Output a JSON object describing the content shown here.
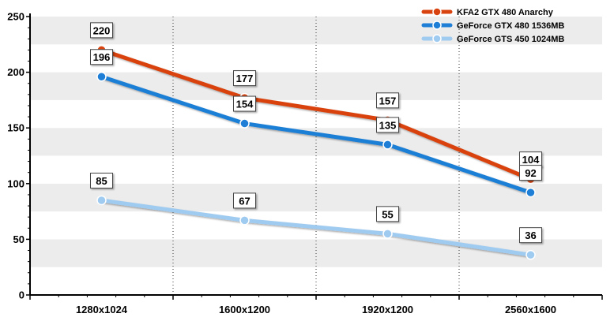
{
  "chart_data": {
    "type": "line",
    "title": "",
    "xlabel": "",
    "ylabel": "",
    "categories": [
      "1280x1024",
      "1600x1200",
      "1920x1200",
      "2560x1600"
    ],
    "ylim": [
      0,
      250
    ],
    "yticks": [
      0,
      50,
      100,
      150,
      200,
      250
    ],
    "grid": "alternating horizontal bands, dotted vertical lines",
    "legend_position": "top-right",
    "series": [
      {
        "name": "KFA2 GTX 480 Anarchy",
        "values": [
          220,
          177,
          157,
          104
        ],
        "color": "#d9430f"
      },
      {
        "name": "GeForce GTX 480 1536MB",
        "values": [
          196,
          154,
          135,
          92
        ],
        "color": "#1f7fd6"
      },
      {
        "name": "GeForce GTS 450 1024MB",
        "values": [
          85,
          67,
          55,
          36
        ],
        "color": "#9fcbf1"
      }
    ]
  }
}
